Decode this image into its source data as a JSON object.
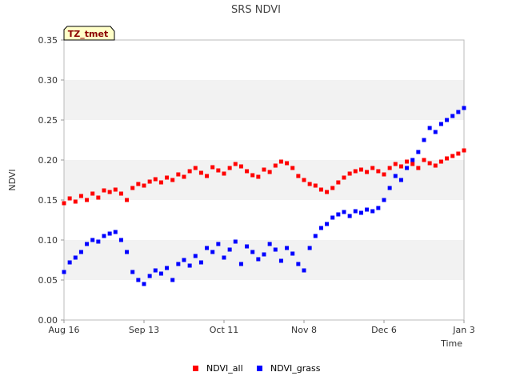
{
  "chart_data": {
    "type": "scatter",
    "title": "SRS NDVI",
    "xlabel": "Time",
    "ylabel": "NDVI",
    "station_tag": "TZ_tmet",
    "x_range": [
      "2023-08-16",
      "2024-01-03"
    ],
    "ylim": [
      0.0,
      0.35
    ],
    "y_ticks": [
      "0.00",
      "0.05",
      "0.10",
      "0.15",
      "0.20",
      "0.25",
      "0.30",
      "0.35"
    ],
    "x_ticks": [
      {
        "label": "Aug 16",
        "date": "2023-08-16"
      },
      {
        "label": "Sep 13",
        "date": "2023-09-13"
      },
      {
        "label": "Oct 11",
        "date": "2023-10-11"
      },
      {
        "label": "Nov 8",
        "date": "2023-11-08"
      },
      {
        "label": "Dec 6",
        "date": "2023-12-06"
      },
      {
        "label": "Jan 3",
        "date": "2024-01-03"
      }
    ],
    "grid": "alternating horizontal bands",
    "legend_position": "bottom-center",
    "series": [
      {
        "name": "NDVI_all",
        "color": "#ff0000",
        "points": [
          [
            "2023-08-16",
            0.146
          ],
          [
            "2023-08-18",
            0.152
          ],
          [
            "2023-08-20",
            0.148
          ],
          [
            "2023-08-22",
            0.155
          ],
          [
            "2023-08-24",
            0.15
          ],
          [
            "2023-08-26",
            0.158
          ],
          [
            "2023-08-28",
            0.153
          ],
          [
            "2023-08-30",
            0.162
          ],
          [
            "2023-09-01",
            0.16
          ],
          [
            "2023-09-03",
            0.163
          ],
          [
            "2023-09-05",
            0.158
          ],
          [
            "2023-09-07",
            0.15
          ],
          [
            "2023-09-09",
            0.165
          ],
          [
            "2023-09-11",
            0.17
          ],
          [
            "2023-09-13",
            0.168
          ],
          [
            "2023-09-15",
            0.173
          ],
          [
            "2023-09-17",
            0.176
          ],
          [
            "2023-09-19",
            0.172
          ],
          [
            "2023-09-21",
            0.178
          ],
          [
            "2023-09-23",
            0.175
          ],
          [
            "2023-09-25",
            0.182
          ],
          [
            "2023-09-27",
            0.179
          ],
          [
            "2023-09-29",
            0.186
          ],
          [
            "2023-10-01",
            0.19
          ],
          [
            "2023-10-03",
            0.184
          ],
          [
            "2023-10-05",
            0.18
          ],
          [
            "2023-10-07",
            0.191
          ],
          [
            "2023-10-09",
            0.187
          ],
          [
            "2023-10-11",
            0.183
          ],
          [
            "2023-10-13",
            0.19
          ],
          [
            "2023-10-15",
            0.195
          ],
          [
            "2023-10-17",
            0.192
          ],
          [
            "2023-10-19",
            0.186
          ],
          [
            "2023-10-21",
            0.181
          ],
          [
            "2023-10-23",
            0.179
          ],
          [
            "2023-10-25",
            0.188
          ],
          [
            "2023-10-27",
            0.185
          ],
          [
            "2023-10-29",
            0.193
          ],
          [
            "2023-10-31",
            0.198
          ],
          [
            "2023-11-02",
            0.196
          ],
          [
            "2023-11-04",
            0.19
          ],
          [
            "2023-11-06",
            0.18
          ],
          [
            "2023-11-08",
            0.175
          ],
          [
            "2023-11-10",
            0.17
          ],
          [
            "2023-11-12",
            0.168
          ],
          [
            "2023-11-14",
            0.163
          ],
          [
            "2023-11-16",
            0.16
          ],
          [
            "2023-11-18",
            0.165
          ],
          [
            "2023-11-20",
            0.172
          ],
          [
            "2023-11-22",
            0.178
          ],
          [
            "2023-11-24",
            0.183
          ],
          [
            "2023-11-26",
            0.186
          ],
          [
            "2023-11-28",
            0.188
          ],
          [
            "2023-11-30",
            0.185
          ],
          [
            "2023-12-02",
            0.19
          ],
          [
            "2023-12-04",
            0.186
          ],
          [
            "2023-12-06",
            0.182
          ],
          [
            "2023-12-08",
            0.19
          ],
          [
            "2023-12-10",
            0.195
          ],
          [
            "2023-12-12",
            0.192
          ],
          [
            "2023-12-14",
            0.198
          ],
          [
            "2023-12-16",
            0.195
          ],
          [
            "2023-12-18",
            0.19
          ],
          [
            "2023-12-20",
            0.2
          ],
          [
            "2023-12-22",
            0.196
          ],
          [
            "2023-12-24",
            0.193
          ],
          [
            "2023-12-26",
            0.198
          ],
          [
            "2023-12-28",
            0.202
          ],
          [
            "2023-12-30",
            0.205
          ],
          [
            "2024-01-01",
            0.208
          ],
          [
            "2024-01-03",
            0.212
          ]
        ]
      },
      {
        "name": "NDVI_grass",
        "color": "#0000ff",
        "points": [
          [
            "2023-08-16",
            0.06
          ],
          [
            "2023-08-18",
            0.072
          ],
          [
            "2023-08-20",
            0.078
          ],
          [
            "2023-08-22",
            0.085
          ],
          [
            "2023-08-24",
            0.095
          ],
          [
            "2023-08-26",
            0.1
          ],
          [
            "2023-08-28",
            0.098
          ],
          [
            "2023-08-30",
            0.105
          ],
          [
            "2023-09-01",
            0.108
          ],
          [
            "2023-09-03",
            0.11
          ],
          [
            "2023-09-05",
            0.1
          ],
          [
            "2023-09-07",
            0.085
          ],
          [
            "2023-09-09",
            0.06
          ],
          [
            "2023-09-11",
            0.05
          ],
          [
            "2023-09-13",
            0.045
          ],
          [
            "2023-09-15",
            0.055
          ],
          [
            "2023-09-17",
            0.062
          ],
          [
            "2023-09-19",
            0.058
          ],
          [
            "2023-09-21",
            0.065
          ],
          [
            "2023-09-23",
            0.05
          ],
          [
            "2023-09-25",
            0.07
          ],
          [
            "2023-09-27",
            0.075
          ],
          [
            "2023-09-29",
            0.068
          ],
          [
            "2023-10-01",
            0.08
          ],
          [
            "2023-10-03",
            0.072
          ],
          [
            "2023-10-05",
            0.09
          ],
          [
            "2023-10-07",
            0.085
          ],
          [
            "2023-10-09",
            0.095
          ],
          [
            "2023-10-11",
            0.078
          ],
          [
            "2023-10-13",
            0.088
          ],
          [
            "2023-10-15",
            0.098
          ],
          [
            "2023-10-17",
            0.07
          ],
          [
            "2023-10-19",
            0.092
          ],
          [
            "2023-10-21",
            0.085
          ],
          [
            "2023-10-23",
            0.076
          ],
          [
            "2023-10-25",
            0.082
          ],
          [
            "2023-10-27",
            0.095
          ],
          [
            "2023-10-29",
            0.088
          ],
          [
            "2023-10-31",
            0.074
          ],
          [
            "2023-11-02",
            0.09
          ],
          [
            "2023-11-04",
            0.083
          ],
          [
            "2023-11-06",
            0.07
          ],
          [
            "2023-11-08",
            0.062
          ],
          [
            "2023-11-10",
            0.09
          ],
          [
            "2023-11-12",
            0.105
          ],
          [
            "2023-11-14",
            0.115
          ],
          [
            "2023-11-16",
            0.12
          ],
          [
            "2023-11-18",
            0.128
          ],
          [
            "2023-11-20",
            0.132
          ],
          [
            "2023-11-22",
            0.135
          ],
          [
            "2023-11-24",
            0.13
          ],
          [
            "2023-11-26",
            0.136
          ],
          [
            "2023-11-28",
            0.134
          ],
          [
            "2023-11-30",
            0.138
          ],
          [
            "2023-12-02",
            0.136
          ],
          [
            "2023-12-04",
            0.14
          ],
          [
            "2023-12-06",
            0.15
          ],
          [
            "2023-12-08",
            0.165
          ],
          [
            "2023-12-10",
            0.18
          ],
          [
            "2023-12-12",
            0.175
          ],
          [
            "2023-12-14",
            0.19
          ],
          [
            "2023-12-16",
            0.2
          ],
          [
            "2023-12-18",
            0.21
          ],
          [
            "2023-12-20",
            0.225
          ],
          [
            "2023-12-22",
            0.24
          ],
          [
            "2023-12-24",
            0.235
          ],
          [
            "2023-12-26",
            0.245
          ],
          [
            "2023-12-28",
            0.25
          ],
          [
            "2023-12-30",
            0.255
          ],
          [
            "2024-01-01",
            0.26
          ],
          [
            "2024-01-03",
            0.265
          ]
        ]
      }
    ]
  }
}
